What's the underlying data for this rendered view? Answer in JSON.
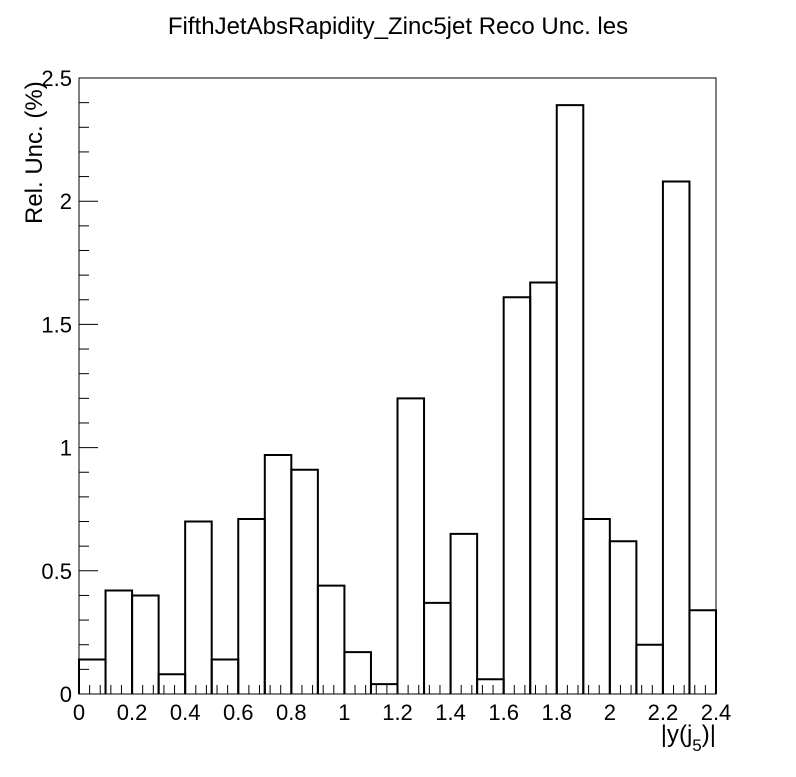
{
  "chart_data": {
    "type": "bar",
    "title": "FifthJetAbsRapidity_Zinc5jet Reco Unc. les",
    "xlabel": "|y(j",
    "xlabel_sub": "5",
    "xlabel_tail": ")|",
    "ylabel": "Rel. Unc. (%)",
    "xlim": [
      0,
      2.4
    ],
    "ylim": [
      0,
      2.5
    ],
    "x_ticks": [
      "0",
      "0.2",
      "0.4",
      "0.6",
      "0.8",
      "1",
      "1.2",
      "1.4",
      "1.6",
      "1.8",
      "2",
      "2.2",
      "2.4"
    ],
    "y_ticks": [
      "0",
      "0.5",
      "1",
      "1.5",
      "2",
      "2.5"
    ],
    "bin_edges": [
      0,
      0.1,
      0.2,
      0.3,
      0.4,
      0.5,
      0.6,
      0.7,
      0.8,
      0.9,
      1.0,
      1.1,
      1.2,
      1.3,
      1.4,
      1.5,
      1.6,
      1.7,
      1.8,
      1.9,
      2.0,
      2.1,
      2.2,
      2.3,
      2.4
    ],
    "values": [
      0.14,
      0.42,
      0.4,
      0.08,
      0.7,
      0.14,
      0.71,
      0.97,
      0.91,
      0.44,
      0.17,
      0.04,
      1.2,
      0.37,
      0.65,
      0.06,
      1.61,
      1.67,
      2.39,
      0.71,
      0.62,
      0.2,
      2.08,
      0.34
    ],
    "grid": false,
    "legend": "none"
  }
}
